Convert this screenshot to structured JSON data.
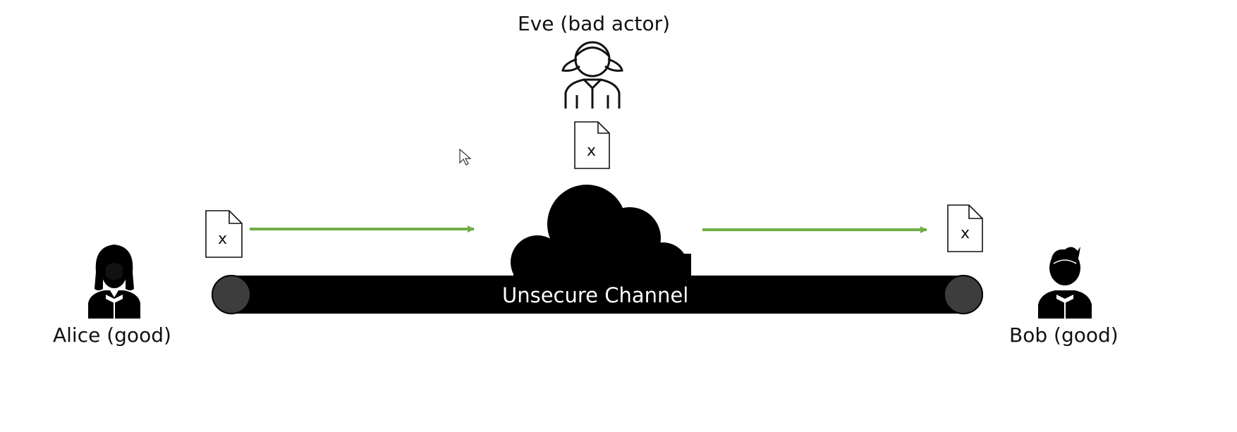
{
  "diagram": {
    "eve_label": "Eve (bad actor)",
    "alice_label": "Alice (good)",
    "bob_label": "Bob (good)",
    "channel_label": "Unsecure Channel",
    "document_mark": "x",
    "arrow_color": "#70ad47",
    "channel_color": "#000000",
    "channel_end_color": "#3d3d3d",
    "icons": [
      "alice-person-icon",
      "eve-person-icon",
      "bob-person-icon",
      "cloud-icon",
      "document-icon",
      "mouse-cursor-icon"
    ]
  }
}
